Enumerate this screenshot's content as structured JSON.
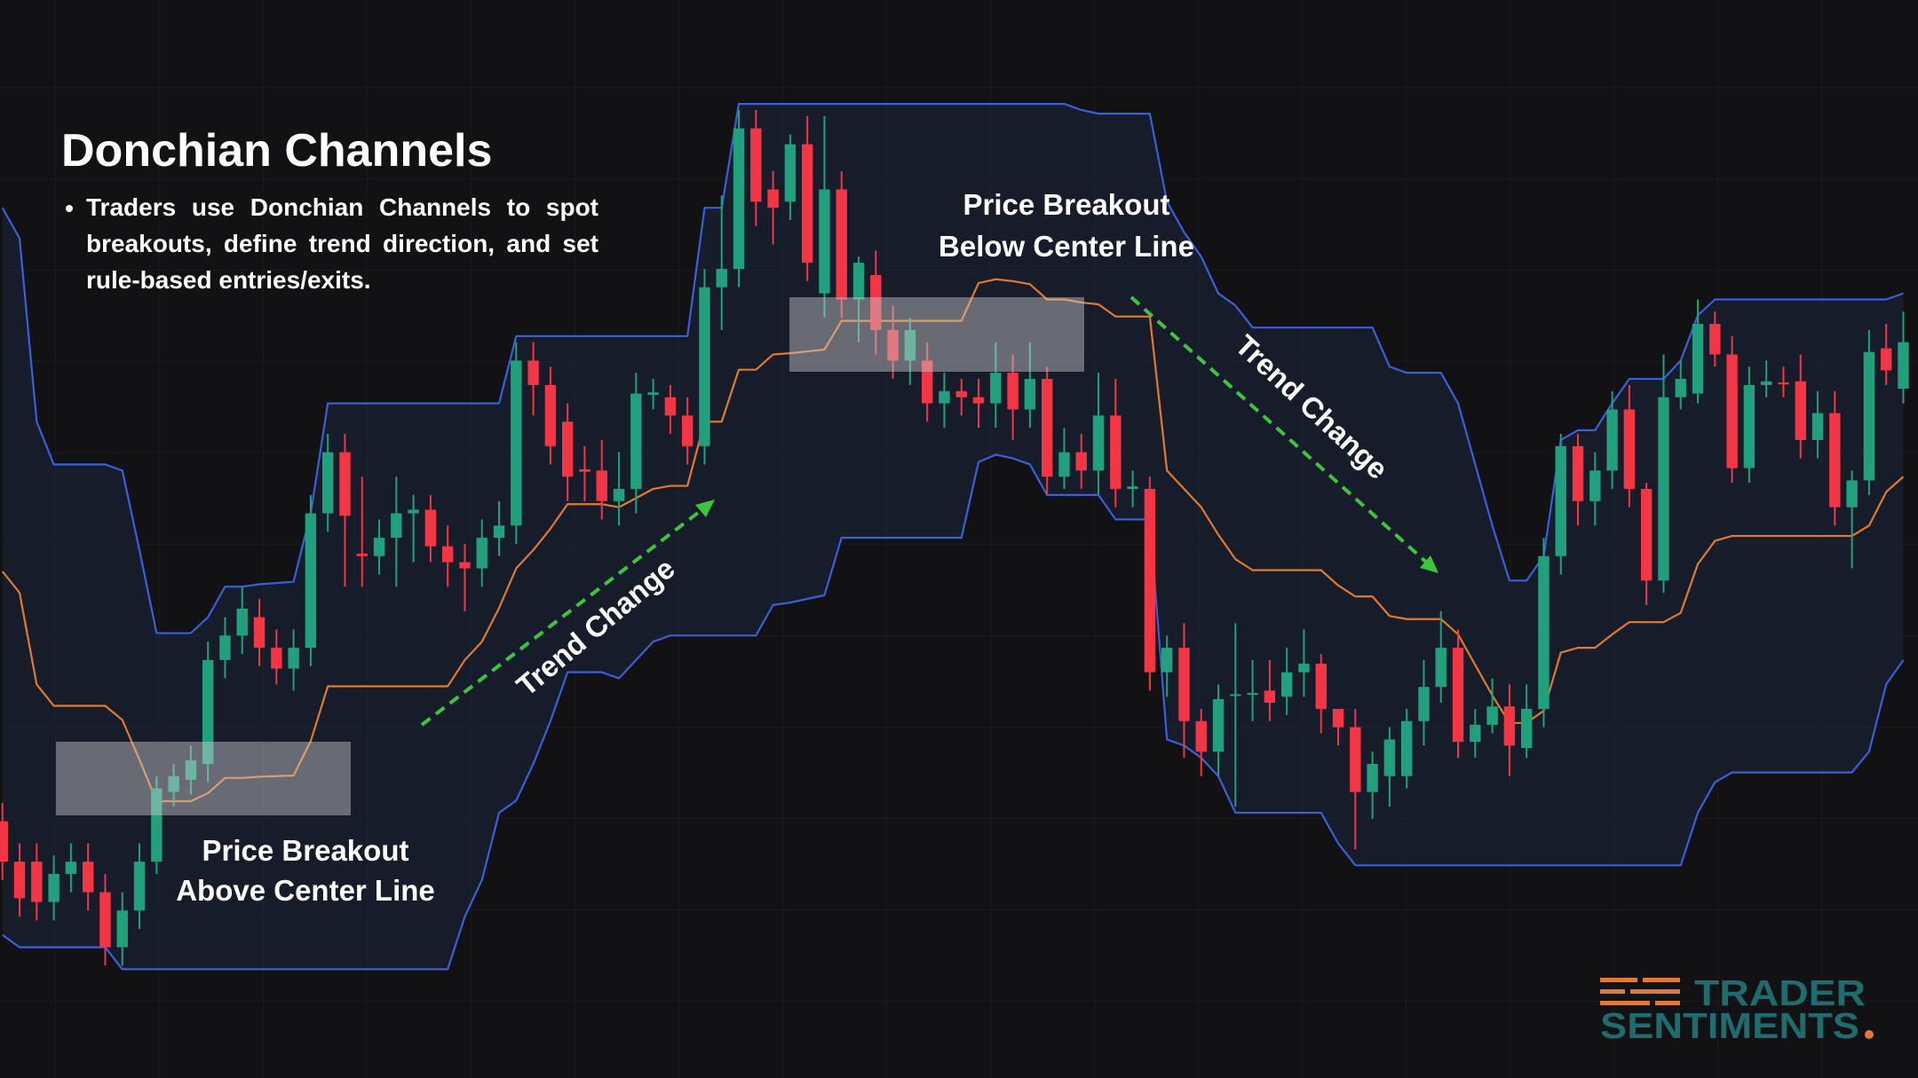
{
  "chart_data": {
    "type": "candlestick",
    "title": "Donchian Channels",
    "bullets": [
      "Traders use Donchian Channels to spot breakouts, define trend direction, and set rule-based entries/exits."
    ],
    "annotations": {
      "breakout_above": [
        "Price Breakout",
        "Above Center Line"
      ],
      "breakout_below": [
        "Price Breakout",
        "Below Center Line"
      ],
      "trend_change_up": "Trend Change",
      "trend_change_down": "Trend Change"
    },
    "ylim": [
      18,
      900
    ],
    "up_color": "#22a07e",
    "down_color": "#f23645",
    "open": [
      228,
      195,
      195,
      162,
      185,
      195,
      170,
      125,
      155,
      195,
      252,
      262,
      275,
      360,
      380,
      395,
      370,
      353,
      370,
      480,
      530,
      447,
      445,
      460,
      480,
      483,
      453,
      440,
      435,
      460,
      470,
      605,
      585,
      555,
      516,
      515,
      490,
      500,
      577,
      575,
      560,
      535,
      665,
      680,
      795,
      745,
      735,
      782,
      660,
      745,
      655,
      675,
      630,
      605,
      605,
      570,
      580,
      575,
      570,
      595,
      565,
      590,
      510,
      530,
      515,
      560,
      500,
      500,
      350,
      370,
      310,
      285,
      331,
      332,
      335,
      330,
      350,
      357,
      320,
      305,
      252,
      265,
      265,
      310,
      338,
      370,
      293,
      307,
      322,
      288,
      320,
      445,
      535,
      490,
      515,
      565,
      500,
      425,
      575,
      578,
      635,
      610,
      517,
      585,
      587,
      588,
      540,
      562,
      485,
      507,
      615,
      582
    ],
    "high": [
      243,
      210,
      210,
      200,
      210,
      210,
      185,
      170,
      210,
      265,
      275,
      290,
      375,
      395,
      420,
      410,
      385,
      385,
      495,
      545,
      545,
      510,
      475,
      510,
      495,
      495,
      470,
      455,
      475,
      490,
      620,
      620,
      600,
      570,
      535,
      540,
      530,
      595,
      590,
      585,
      575,
      680,
      740,
      810,
      810,
      760,
      790,
      805,
      805,
      760,
      690,
      695,
      650,
      640,
      620,
      595,
      590,
      590,
      620,
      610,
      620,
      600,
      550,
      545,
      595,
      590,
      515,
      510,
      380,
      390,
      320,
      340,
      390,
      360,
      360,
      370,
      385,
      365,
      320,
      320,
      285,
      305,
      320,
      360,
      400,
      385,
      320,
      345,
      340,
      340,
      460,
      545,
      545,
      530,
      580,
      585,
      505,
      610,
      605,
      655,
      645,
      625,
      600,
      605,
      600,
      610,
      580,
      580,
      515,
      630,
      635,
      645
    ],
    "low": [
      180,
      150,
      147,
      147,
      170,
      155,
      110,
      110,
      140,
      185,
      240,
      250,
      260,
      345,
      365,
      355,
      340,
      335,
      355,
      465,
      420,
      420,
      430,
      420,
      440,
      440,
      420,
      400,
      420,
      445,
      455,
      560,
      520,
      490,
      490,
      475,
      470,
      480,
      565,
      545,
      520,
      520,
      630,
      665,
      715,
      700,
      720,
      670,
      640,
      640,
      620,
      610,
      590,
      585,
      555,
      550,
      560,
      550,
      550,
      540,
      550,
      495,
      500,
      500,
      495,
      485,
      485,
      335,
      330,
      280,
      265,
      265,
      240,
      310,
      310,
      315,
      330,
      300,
      290,
      205,
      230,
      240,
      255,
      290,
      325,
      280,
      280,
      300,
      265,
      280,
      305,
      430,
      470,
      470,
      500,
      485,
      405,
      415,
      565,
      570,
      600,
      505,
      505,
      575,
      575,
      525,
      525,
      470,
      435,
      495,
      585,
      570
    ],
    "close": [
      195,
      165,
      162,
      185,
      195,
      170,
      125,
      155,
      195,
      255,
      265,
      278,
      360,
      380,
      402,
      370,
      353,
      370,
      480,
      530,
      478,
      445,
      460,
      480,
      483,
      453,
      440,
      435,
      460,
      470,
      605,
      585,
      535,
      510,
      514,
      490,
      500,
      578,
      579,
      560,
      535,
      665,
      680,
      795,
      735,
      730,
      782,
      685,
      745,
      655,
      685,
      630,
      605,
      630,
      570,
      580,
      575,
      570,
      595,
      565,
      590,
      510,
      530,
      515,
      560,
      500,
      502,
      350,
      370,
      310,
      285,
      328,
      332,
      333,
      325,
      350,
      357,
      320,
      305,
      252,
      275,
      295,
      310,
      338,
      370,
      293,
      307,
      322,
      290,
      320,
      445,
      535,
      490,
      515,
      565,
      500,
      425,
      575,
      590,
      635,
      610,
      517,
      585,
      588,
      586,
      540,
      562,
      485,
      507,
      612,
      597,
      620
    ],
    "channel": {
      "band_color": "#3a5fd9",
      "middle_color": "#e07a2c",
      "fill_color": "rgba(32,42,68,0.45)",
      "upper": [
        730,
        705,
        555,
        520,
        520,
        520,
        520,
        515,
        450,
        382,
        382,
        382,
        395,
        420,
        420,
        422,
        423,
        424,
        480,
        570,
        570,
        570,
        570,
        570,
        570,
        570,
        570,
        570,
        570,
        570,
        625,
        625,
        625,
        625,
        625,
        625,
        625,
        625,
        625,
        625,
        625,
        730,
        730,
        815,
        815,
        815,
        815,
        815,
        815,
        815,
        815,
        815,
        815,
        815,
        815,
        815,
        815,
        815,
        815,
        815,
        815,
        815,
        815,
        810,
        807,
        807,
        807,
        807,
        735,
        710,
        690,
        660,
        650,
        632,
        632,
        632,
        632,
        632,
        632,
        632,
        632,
        600,
        595,
        595,
        595,
        570,
        520,
        470,
        425,
        425,
        445,
        540,
        548,
        548,
        570,
        590,
        590,
        590,
        605,
        642,
        655,
        655,
        655,
        655,
        655,
        655,
        655,
        655,
        655,
        655,
        655,
        660
      ],
      "lower": [
        135,
        125,
        125,
        125,
        125,
        125,
        125,
        107,
        107,
        107,
        107,
        107,
        107,
        107,
        107,
        107,
        107,
        107,
        107,
        107,
        107,
        107,
        107,
        107,
        107,
        107,
        107,
        150,
        180,
        235,
        245,
        275,
        310,
        350,
        350,
        350,
        345,
        360,
        375,
        380,
        380,
        380,
        380,
        380,
        380,
        405,
        407,
        410,
        413,
        460,
        460,
        460,
        460,
        460,
        460,
        460,
        460,
        522,
        528,
        525,
        520,
        495,
        495,
        495,
        495,
        475,
        475,
        475,
        295,
        290,
        280,
        265,
        235,
        235,
        235,
        235,
        235,
        235,
        210,
        192,
        192,
        192,
        192,
        192,
        192,
        192,
        192,
        192,
        192,
        192,
        192,
        192,
        192,
        192,
        192,
        192,
        192,
        192,
        192,
        235,
        260,
        268,
        268,
        268,
        268,
        268,
        268,
        268,
        268,
        285,
        340,
        360
      ],
      "middle": [
        432.5,
        415,
        340,
        322.5,
        322.5,
        322.5,
        322.5,
        311,
        278.5,
        244.5,
        244.5,
        244.5,
        251,
        263.5,
        263.5,
        264.5,
        265,
        265.5,
        293.5,
        338.5,
        338.5,
        338.5,
        338.5,
        338.5,
        338.5,
        338.5,
        338.5,
        360,
        375,
        402.5,
        435,
        450,
        467.5,
        487.5,
        487.5,
        487.5,
        485,
        492.5,
        500,
        502.5,
        502.5,
        555,
        555,
        597.5,
        597.5,
        610,
        611,
        612.5,
        614,
        637.5,
        637.5,
        637.5,
        637.5,
        637.5,
        637.5,
        637.5,
        637.5,
        668.5,
        671.5,
        670,
        667.5,
        655,
        655,
        652.5,
        651,
        641,
        641,
        641,
        515,
        500,
        485,
        462.5,
        442.5,
        433.5,
        433.5,
        433.5,
        433.5,
        433.5,
        421,
        412,
        412,
        396,
        393.5,
        393.5,
        393.5,
        381,
        356,
        331,
        308.5,
        308.5,
        318.5,
        366,
        370,
        370,
        381,
        391,
        391,
        391,
        398.5,
        438.5,
        457.5,
        461.5,
        461.5,
        461.5,
        461.5,
        461.5,
        461.5,
        461.5,
        461.5,
        470,
        497.5,
        510
      ]
    }
  },
  "logo": {
    "lines": [
      "TRADER",
      "SENTIMENTS"
    ]
  }
}
